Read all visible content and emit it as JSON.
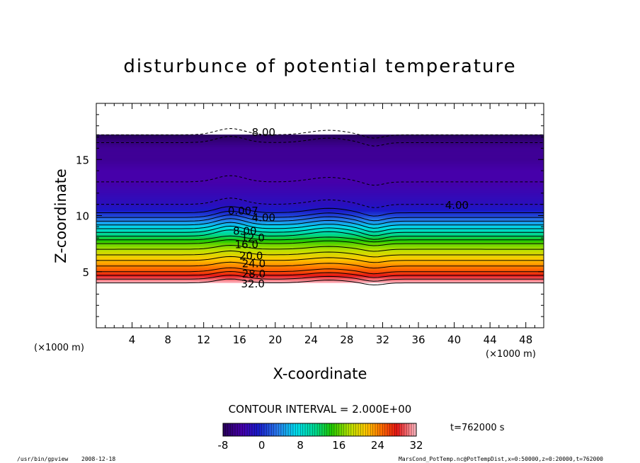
{
  "chart_data": {
    "type": "heatmap",
    "title": "disturbunce of potential temperature",
    "xlabel": "X-coordinate",
    "ylabel": "Z-coordinate",
    "x_unit_label": "(×1000 m)",
    "z_unit_label": "(×1000 m)",
    "xlim": [
      0,
      50
    ],
    "ylim": [
      0,
      20
    ],
    "x_ticks": [
      4,
      8,
      12,
      16,
      20,
      24,
      28,
      32,
      36,
      40,
      44,
      48
    ],
    "y_ticks": [
      5,
      10,
      15
    ],
    "x_tick_labels": [
      "4",
      "8",
      "12",
      "16",
      "20",
      "24",
      "28",
      "32",
      "36",
      "40",
      "44",
      "48"
    ],
    "y_tick_labels": [
      "5",
      "10",
      "15"
    ],
    "contour_interval_text": "CONTOUR INTERVAL = 2.000E+00",
    "time_label": "t=762000 s",
    "colorbar": {
      "min": -8,
      "max": 32,
      "tick_values": [
        -8,
        0,
        8,
        16,
        24,
        32
      ],
      "tick_labels": [
        "-8",
        "0",
        "8",
        "16",
        "24",
        "32"
      ]
    },
    "field_profile": {
      "z": [
        4.0,
        4.5,
        5.0,
        5.5,
        6.0,
        6.5,
        7.0,
        7.5,
        8.0,
        8.5,
        9.0,
        9.5,
        10.0,
        10.5,
        11.0,
        12.0,
        13.0,
        14.0,
        15.0,
        16.0,
        16.5,
        17.2
      ],
      "value": [
        32,
        29,
        26,
        24,
        22,
        20,
        18,
        16,
        13,
        10,
        7,
        4,
        1,
        -1,
        -2,
        -3,
        -4,
        -4,
        -5,
        -5,
        -6,
        -8
      ]
    },
    "no_data_below_z": 4.0,
    "no_data_above_z": 17.2,
    "contour_labels": [
      {
        "text": "8.00",
        "x": 18.7,
        "z": 17.4
      },
      {
        "text": "4.00",
        "x": 40.3,
        "z": 10.9
      },
      {
        "text": "0.007",
        "x": 16.4,
        "z": 10.4
      },
      {
        "text": "4.00",
        "x": 18.7,
        "z": 9.8
      },
      {
        "text": "8.00",
        "x": 16.6,
        "z": 8.6
      },
      {
        "text": "12.0",
        "x": 17.5,
        "z": 8.0
      },
      {
        "text": "16.0",
        "x": 16.8,
        "z": 7.4
      },
      {
        "text": "20.0",
        "x": 17.3,
        "z": 6.4
      },
      {
        "text": "24.0",
        "x": 17.6,
        "z": 5.7
      },
      {
        "text": "28.0",
        "x": 17.6,
        "z": 4.8
      },
      {
        "text": "32.0",
        "x": 17.5,
        "z": 3.9
      }
    ]
  },
  "footer": {
    "left_command": "/usr/bin/gpview",
    "left_date": "2008-12-18",
    "right_source": "MarsCond_PotTemp.nc@PotTempDist,x=0:50000,z=0:20000,t=762000"
  }
}
